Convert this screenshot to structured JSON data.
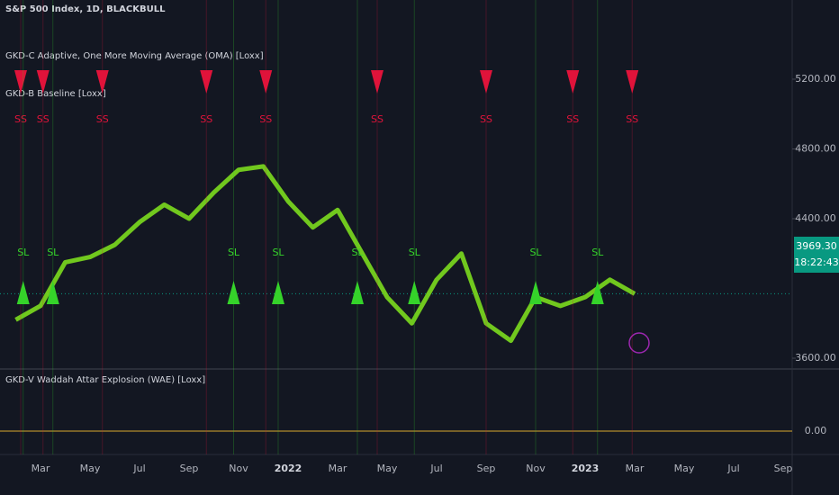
{
  "chart_data": {
    "type": "line",
    "title": "S&P 500 Index, 1D, BLACKBULL",
    "indicators": [
      "GKD-C Adaptive, One More Moving Average (OMA) [Loxx]",
      "GKD-B Baseline [Loxx]"
    ],
    "categories": [
      null,
      null,
      "Mar",
      null,
      "May",
      null,
      "Jul",
      null,
      "Sep",
      null,
      "Nov",
      null,
      "2022",
      null,
      "Mar",
      null,
      "May",
      null,
      "Jul",
      null,
      "Sep",
      null,
      "Nov",
      null,
      "2023",
      null,
      "Mar",
      null,
      "May",
      null,
      "Jul",
      null,
      "Sep"
    ],
    "series": [
      {
        "name": "S&P 500 Index",
        "color": "#7cdc1e",
        "values": [
          null,
          3820,
          3900,
          4150,
          4180,
          4250,
          4380,
          4480,
          4400,
          4550,
          4680,
          4700,
          4500,
          4350,
          4450,
          4200,
          3950,
          3800,
          4050,
          4200,
          3800,
          3700,
          3950,
          3900,
          3950,
          4050,
          3969.3,
          null,
          null,
          null,
          null,
          null,
          null
        ]
      }
    ],
    "ylim": [
      3538,
      5654
    ],
    "yticks": [
      {
        "value": 3600,
        "label": "3600.00"
      },
      {
        "value": 4400,
        "label": "4400.00"
      },
      {
        "value": 4800,
        "label": "4800.00"
      },
      {
        "value": 5200,
        "label": "5200.00"
      }
    ],
    "last_price": {
      "value": 3969.3,
      "label": "3969.30"
    },
    "countdown": "18:22:43",
    "short_signals": {
      "label": "SS",
      "color": "#e0133a",
      "x": [
        1.2,
        2.1,
        4.5,
        8.7,
        11.1,
        15.6,
        20.0,
        23.5,
        25.9
      ]
    },
    "long_signals": {
      "label": "SL",
      "color": "#35d32a",
      "x": [
        1.3,
        2.5,
        9.8,
        11.6,
        14.8,
        17.1,
        22.0,
        24.5
      ]
    },
    "lower_panel": {
      "title": "GKD-V Waddah Attar Explosion (WAE) [Loxx]",
      "yticks": [
        {
          "value": 0,
          "label": "0.00"
        }
      ]
    },
    "grid": false
  }
}
